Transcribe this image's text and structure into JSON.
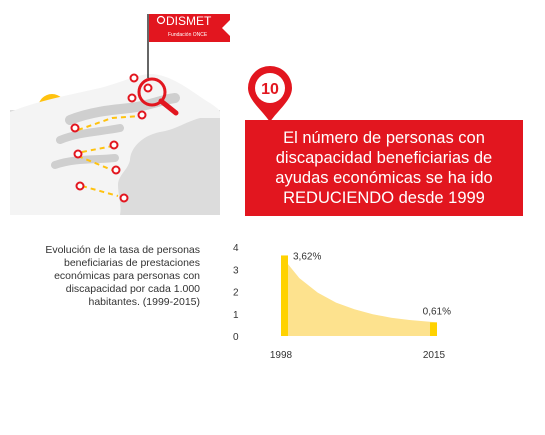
{
  "colors": {
    "red": "#e2161f",
    "yellow": "#fde28e",
    "bar": "#ffd200",
    "sand": "#d9d9d9"
  },
  "brand": {
    "name": "DISMET",
    "subtitle": "Fundación ONCE"
  },
  "headline": {
    "number": "10",
    "text": "El número de personas con discapacidad beneficiarias de ayudas económicas se ha ido REDUCIENDO desde 1999"
  },
  "description": "Evolución de la tasa de personas beneficiarias de prestaciones económicas para personas con discapacidad por cada 1.000 habitantes. (1999-2015)",
  "icons": [
    "flag-icon",
    "map-pin-icon",
    "magnifier-icon",
    "sun-icon"
  ],
  "chart_data": {
    "type": "area",
    "x": [
      1998,
      2015
    ],
    "x_tick_labels": [
      "1998",
      "2015"
    ],
    "y_ticks": [
      0,
      1,
      2,
      3,
      4
    ],
    "ylim": [
      0,
      4
    ],
    "curve_points": [
      [
        1998,
        3.62
      ],
      [
        2000,
        2.6
      ],
      [
        2002,
        1.95
      ],
      [
        2004,
        1.5
      ],
      [
        2006,
        1.2
      ],
      [
        2008,
        0.98
      ],
      [
        2010,
        0.82
      ],
      [
        2012,
        0.72
      ],
      [
        2015,
        0.61
      ]
    ],
    "start_label": "3,62%",
    "end_label": "0,61%",
    "title": "",
    "xlabel": "",
    "ylabel": "",
    "grid": false
  }
}
